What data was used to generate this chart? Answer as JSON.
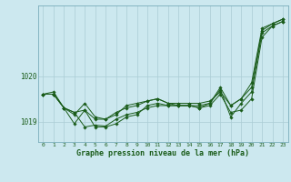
{
  "background_color": "#cce8ef",
  "grid_color": "#aaccd4",
  "line_color": "#1a5c1a",
  "text_color": "#1a5c1a",
  "title": "Graphe pression niveau de la mer (hPa)",
  "xlabel_hours": [
    0,
    1,
    2,
    3,
    4,
    5,
    6,
    7,
    8,
    9,
    10,
    11,
    12,
    13,
    14,
    15,
    16,
    17,
    18,
    19,
    20,
    21,
    22,
    23
  ],
  "ylim": [
    1018.55,
    1021.55
  ],
  "yticks": [
    1019,
    1020
  ],
  "series": {
    "line1": [
      1019.6,
      1019.65,
      1019.3,
      1019.2,
      1019.25,
      1019.05,
      1019.05,
      1019.15,
      1019.35,
      1019.4,
      1019.45,
      1019.5,
      1019.4,
      1019.4,
      1019.4,
      1019.4,
      1019.45,
      1019.65,
      1019.35,
      1019.5,
      1019.75,
      1021.0,
      1021.15,
      1021.25
    ],
    "line2": [
      1019.6,
      1019.6,
      1019.3,
      1019.15,
      1019.4,
      1019.1,
      1019.05,
      1019.2,
      1019.3,
      1019.35,
      1019.45,
      1019.5,
      1019.4,
      1019.35,
      1019.35,
      1019.35,
      1019.4,
      1019.75,
      1019.35,
      1019.5,
      1019.85,
      1021.05,
      1021.15,
      1021.25
    ],
    "line3": [
      1019.6,
      1019.6,
      1019.3,
      1019.2,
      1018.88,
      1018.92,
      1018.9,
      1019.05,
      1019.15,
      1019.2,
      1019.3,
      1019.35,
      1019.35,
      1019.35,
      1019.35,
      1019.3,
      1019.35,
      1019.6,
      1019.2,
      1019.25,
      1019.5,
      1020.85,
      1021.1,
      1021.2
    ],
    "line4": [
      1019.6,
      1019.6,
      1019.3,
      1018.95,
      1019.25,
      1018.88,
      1018.88,
      1018.95,
      1019.1,
      1019.15,
      1019.35,
      1019.4,
      1019.35,
      1019.35,
      1019.35,
      1019.3,
      1019.4,
      1019.7,
      1019.1,
      1019.4,
      1019.65,
      1020.95,
      1021.1,
      1021.2
    ]
  }
}
